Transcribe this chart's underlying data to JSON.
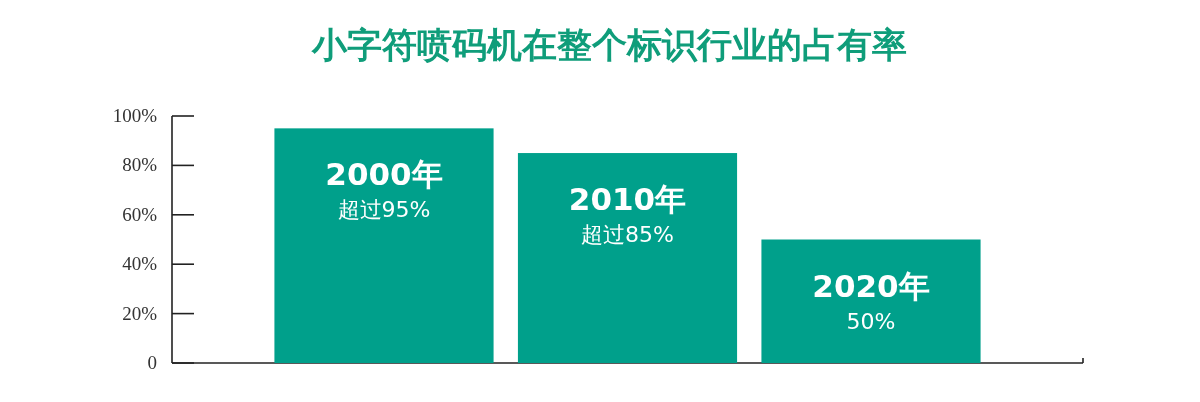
{
  "chart_data": {
    "type": "bar",
    "title": "小字符喷码机在整个标识行业的占有率",
    "categories": [
      "2000年",
      "2010年",
      "2020年"
    ],
    "values": [
      95,
      85,
      50
    ],
    "value_labels": [
      "超过95%",
      "超过85%",
      "50%"
    ],
    "color": "#00a08b",
    "ylim": [
      0,
      100
    ],
    "yticks": [
      0,
      {
        "value": 20,
        "label": "20%"
      },
      {
        "value": 40,
        "label": "40%"
      },
      {
        "value": 60,
        "label": "60%"
      },
      {
        "value": 80,
        "label": "80%"
      },
      {
        "value": 100,
        "label": "100%"
      }
    ]
  }
}
